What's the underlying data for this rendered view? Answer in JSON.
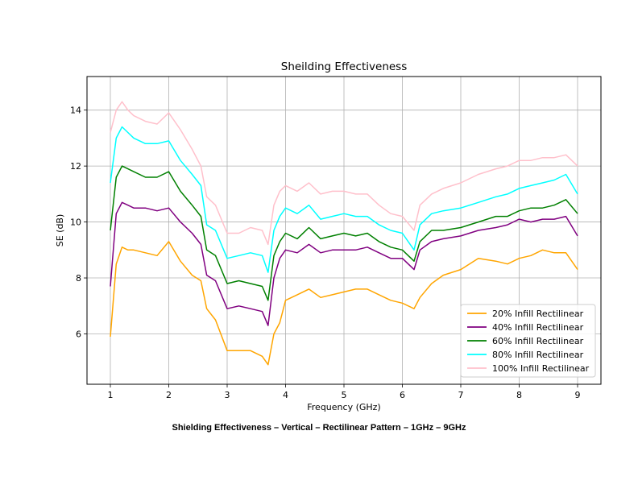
{
  "caption": "Shielding Effectiveness – Vertical – Rectilinear Pattern – 1GHz – 9GHz",
  "chart_data": {
    "type": "line",
    "title": "Sheilding Effectiveness",
    "xlabel": "Frequency (GHz)",
    "ylabel": "SE (dB)",
    "xlim": [
      0.6,
      9.4
    ],
    "ylim": [
      4.2,
      15.2
    ],
    "xticks": [
      1,
      2,
      3,
      4,
      5,
      6,
      7,
      8,
      9
    ],
    "yticks": [
      6,
      8,
      10,
      12,
      14
    ],
    "grid": true,
    "legend_position": "lower-right",
    "x": [
      1.0,
      1.1,
      1.2,
      1.3,
      1.4,
      1.6,
      1.8,
      2.0,
      2.2,
      2.4,
      2.55,
      2.65,
      2.8,
      3.0,
      3.2,
      3.4,
      3.6,
      3.7,
      3.8,
      3.9,
      4.0,
      4.2,
      4.4,
      4.6,
      4.8,
      5.0,
      5.2,
      5.4,
      5.6,
      5.8,
      6.0,
      6.2,
      6.3,
      6.5,
      6.7,
      7.0,
      7.3,
      7.6,
      7.8,
      8.0,
      8.2,
      8.4,
      8.6,
      8.8,
      9.0
    ],
    "series": [
      {
        "name": "20% Infill Rectilinear",
        "color": "#ffa500",
        "values": [
          5.9,
          8.5,
          9.1,
          9.0,
          9.0,
          8.9,
          8.8,
          9.3,
          8.6,
          8.1,
          7.9,
          6.9,
          6.5,
          5.4,
          5.4,
          5.4,
          5.2,
          4.9,
          6.0,
          6.4,
          7.2,
          7.4,
          7.6,
          7.3,
          7.4,
          7.5,
          7.6,
          7.6,
          7.4,
          7.2,
          7.1,
          6.9,
          7.3,
          7.8,
          8.1,
          8.3,
          8.7,
          8.6,
          8.5,
          8.7,
          8.8,
          9.0,
          8.9,
          8.9,
          8.3
        ]
      },
      {
        "name": "40% Infill Rectilinear",
        "color": "#800080",
        "values": [
          7.7,
          10.3,
          10.7,
          10.6,
          10.5,
          10.5,
          10.4,
          10.5,
          10.0,
          9.6,
          9.2,
          8.1,
          7.9,
          6.9,
          7.0,
          6.9,
          6.8,
          6.3,
          8.0,
          8.7,
          9.0,
          8.9,
          9.2,
          8.9,
          9.0,
          9.0,
          9.0,
          9.1,
          8.9,
          8.7,
          8.7,
          8.3,
          9.0,
          9.3,
          9.4,
          9.5,
          9.7,
          9.8,
          9.9,
          10.1,
          10.0,
          10.1,
          10.1,
          10.2,
          9.5
        ]
      },
      {
        "name": "60% Infill Rectilinear",
        "color": "#008000",
        "values": [
          9.7,
          11.6,
          12.0,
          11.9,
          11.8,
          11.6,
          11.6,
          11.8,
          11.1,
          10.6,
          10.2,
          9.0,
          8.8,
          7.8,
          7.9,
          7.8,
          7.7,
          7.2,
          8.8,
          9.3,
          9.6,
          9.4,
          9.8,
          9.4,
          9.5,
          9.6,
          9.5,
          9.6,
          9.3,
          9.1,
          9.0,
          8.6,
          9.3,
          9.7,
          9.7,
          9.8,
          10.0,
          10.2,
          10.2,
          10.4,
          10.5,
          10.5,
          10.6,
          10.8,
          10.3
        ]
      },
      {
        "name": "80% Infill Rectilinear",
        "color": "#00ffff",
        "values": [
          11.4,
          13.0,
          13.4,
          13.2,
          13.0,
          12.8,
          12.8,
          12.9,
          12.2,
          11.7,
          11.3,
          9.9,
          9.7,
          8.7,
          8.8,
          8.9,
          8.8,
          8.2,
          9.7,
          10.2,
          10.5,
          10.3,
          10.6,
          10.1,
          10.2,
          10.3,
          10.2,
          10.2,
          9.9,
          9.7,
          9.6,
          9.0,
          9.9,
          10.3,
          10.4,
          10.5,
          10.7,
          10.9,
          11.0,
          11.2,
          11.3,
          11.4,
          11.5,
          11.7,
          11.0
        ]
      },
      {
        "name": "100% Infill Rectilinear",
        "color": "#ffc0cb",
        "values": [
          13.2,
          14.0,
          14.3,
          14.0,
          13.8,
          13.6,
          13.5,
          13.9,
          13.3,
          12.6,
          12.0,
          10.9,
          10.6,
          9.6,
          9.6,
          9.8,
          9.7,
          9.2,
          10.6,
          11.1,
          11.3,
          11.1,
          11.4,
          11.0,
          11.1,
          11.1,
          11.0,
          11.0,
          10.6,
          10.3,
          10.2,
          9.7,
          10.6,
          11.0,
          11.2,
          11.4,
          11.7,
          11.9,
          12.0,
          12.2,
          12.2,
          12.3,
          12.3,
          12.4,
          12.0
        ]
      }
    ]
  }
}
